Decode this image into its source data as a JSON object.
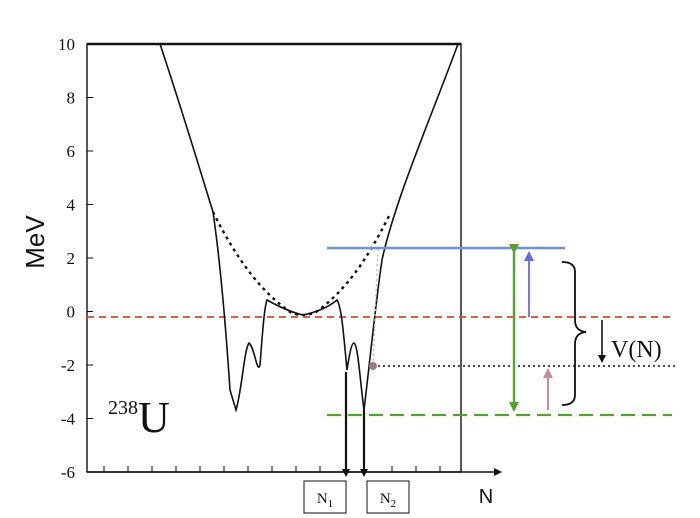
{
  "y_axis": {
    "label": "MeV",
    "ticks": [
      "10",
      "8",
      "6",
      "4",
      "2",
      "0",
      "-2",
      "-4",
      "-6"
    ],
    "tick_values": [
      10,
      8,
      6,
      4,
      2,
      0,
      -2,
      -4,
      -6
    ]
  },
  "x_axis": {
    "label": "N"
  },
  "isotope": {
    "mass_number": "238",
    "element": "U"
  },
  "markers": {
    "n1": "N",
    "n1_sub": "1",
    "n2": "N",
    "n2_sub": "2"
  },
  "potential_label": "V(N)",
  "colors": {
    "curve": "#111111",
    "zero_line": "#e0452e",
    "top_level": "#6f8fe0",
    "bottom_level": "#55a030",
    "up_arrow": "#6a6ae0",
    "pink_arrow": "#c98aa0",
    "dot": "#9a7a86"
  },
  "levels": {
    "top_mev": 2.5,
    "zero_mev": 0,
    "mid_mev": -1.9,
    "bottom_mev": -3.7
  }
}
